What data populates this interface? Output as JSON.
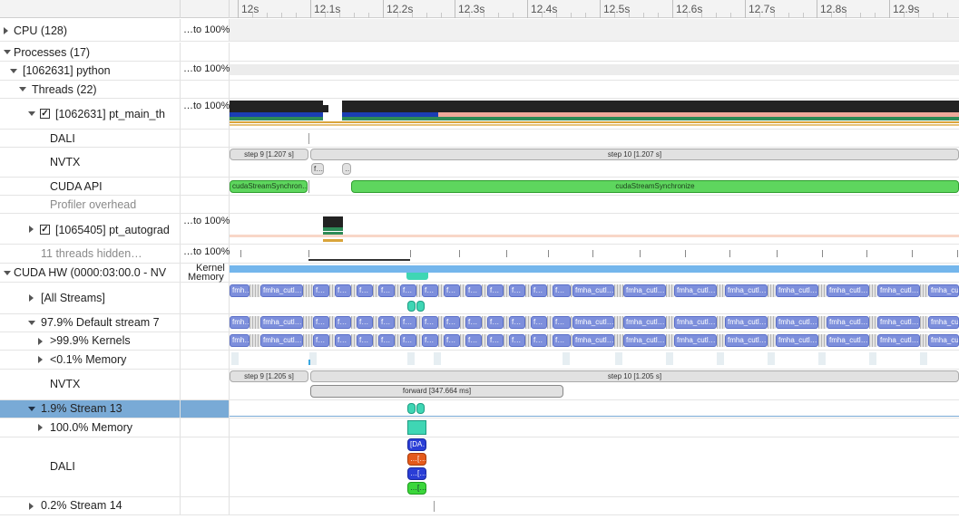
{
  "ruler": {
    "ticks": [
      "12s",
      "12.1s",
      "12.2s",
      "12.3s",
      "12.4s",
      "12.5s",
      "12.6s",
      "12.7s",
      "12.8s",
      "12.9s"
    ]
  },
  "rows": {
    "cpu": {
      "label": "CPU (128)",
      "scale": "…to 100%"
    },
    "processes": {
      "label": "Processes (17)"
    },
    "python": {
      "label": "[1062631] python",
      "scale": "…to 100%"
    },
    "threads": {
      "label": "Threads (22)"
    },
    "pt_main": {
      "label": "[1062631] pt_main_th",
      "scale": "…to 100%",
      "checked": "✓"
    },
    "dali_thread": {
      "label": "DALI"
    },
    "nvtx_thread": {
      "label": "NVTX",
      "step9": "step 9 [1.207 s]",
      "step10": "step 10 [1.207 s]",
      "small1": "f…",
      "small2": "…"
    },
    "cuda_api": {
      "label": "CUDA API",
      "call1": "cudaStreamSynchron…",
      "call2": "cudaStreamSynchronize"
    },
    "profiler": {
      "label": "Profiler overhead"
    },
    "pt_autograd": {
      "label": "[1065405] pt_autograd",
      "scale": "…to 100%",
      "checked": "✓"
    },
    "hidden": {
      "label": "11 threads hidden…",
      "scale": "…to 100%"
    },
    "cuda_hw": {
      "label": "CUDA HW (0000:03:00.0 - NV",
      "scale_line1": "Kernel",
      "scale_line2": "Memory"
    },
    "all_streams": {
      "label": "[All Streams]"
    },
    "default_stream": {
      "label": "97.9% Default stream 7"
    },
    "kernels": {
      "label": ">99.9% Kernels"
    },
    "memory": {
      "label": "<0.1% Memory"
    },
    "nvtx_hw": {
      "label": "NVTX",
      "step9": "step 9 [1.205 s]",
      "step10": "step 10 [1.205 s]",
      "forward": "forward [347.664 ms]"
    },
    "stream13": {
      "label": "1.9% Stream 13"
    },
    "mem100": {
      "label": "100.0% Memory"
    },
    "dali_hw": {
      "label": "DALI",
      "b1": "[DA…",
      "b2": "…[…",
      "b3": "…[…",
      "b4": "…[…"
    },
    "stream14": {
      "label": "0.2% Stream 14"
    }
  },
  "kernel_text": {
    "short": "fmh…",
    "fused": "fmha_cutl…",
    "f": "f…"
  },
  "colors": {
    "kernel": "#7d8fdc",
    "green": "#5ed65e",
    "teal": "#3fd6b4",
    "blue_bar": "#74b6ec",
    "selected": "#79aad6"
  }
}
